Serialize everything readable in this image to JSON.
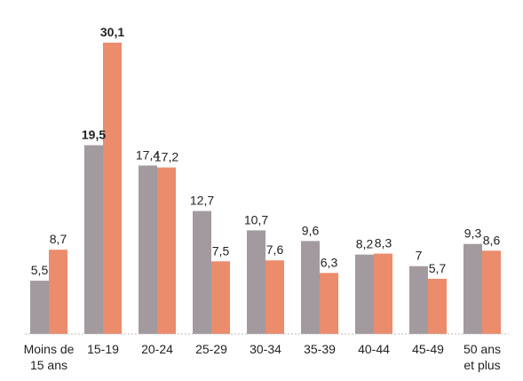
{
  "chart_data": {
    "type": "bar",
    "title": "",
    "xlabel": "",
    "ylabel": "",
    "ylim": [
      0,
      30.1
    ],
    "grid": false,
    "categories": [
      [
        "Moins de",
        "15 ans"
      ],
      [
        "15-19"
      ],
      [
        "20-24"
      ],
      [
        "25-29"
      ],
      [
        "30-34"
      ],
      [
        "35-39"
      ],
      [
        "40-44"
      ],
      [
        "45-49"
      ],
      [
        "50 ans",
        "et plus"
      ]
    ],
    "series": [
      {
        "color": "#a39a9f",
        "values": [
          5.5,
          19.5,
          17.4,
          12.7,
          10.7,
          9.6,
          8.2,
          7,
          9.3
        ],
        "labels": [
          "5,5",
          "19,5",
          "17,4",
          "12,7",
          "10,7",
          "9,6",
          "8,2",
          "7",
          "9,3"
        ]
      },
      {
        "color": "#eb8c6c",
        "values": [
          8.7,
          30.1,
          17.2,
          7.5,
          7.6,
          6.3,
          8.3,
          5.7,
          8.6
        ],
        "labels": [
          "8,7",
          "30,1",
          "17,2",
          "7,5",
          "7,6",
          "6,3",
          "8,3",
          "5,7",
          "8,6"
        ]
      }
    ],
    "bold_category_index": 1
  }
}
